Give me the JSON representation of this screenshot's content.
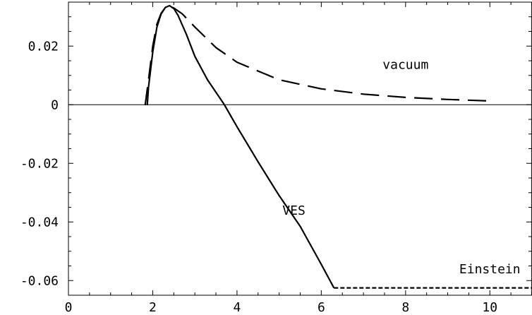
{
  "chart_data": {
    "type": "line",
    "title": "",
    "xlabel": "",
    "ylabel": "",
    "xlim": [
      0,
      11
    ],
    "ylim": [
      -0.065,
      0.035
    ],
    "grid": false,
    "legend": "none",
    "x_ticks": [
      {
        "value": 0,
        "label": "0"
      },
      {
        "value": 2,
        "label": "2"
      },
      {
        "value": 4,
        "label": "4"
      },
      {
        "value": 6,
        "label": "6"
      },
      {
        "value": 8,
        "label": "8"
      },
      {
        "value": 10,
        "label": "10"
      }
    ],
    "y_ticks": [
      {
        "value": 0.02,
        "label": "0.02"
      },
      {
        "value": 0,
        "label": "0"
      },
      {
        "value": -0.02,
        "label": "-0.02"
      },
      {
        "value": -0.04,
        "label": "-0.04"
      },
      {
        "value": -0.06,
        "label": "-0.06"
      }
    ],
    "series": [
      {
        "style": "dashed",
        "color": "#000000",
        "x": [
          1.82,
          1.9,
          2.0,
          2.1,
          2.2,
          2.3,
          2.4,
          2.5,
          2.7,
          3.0,
          3.5,
          4.0,
          5.0,
          6.0,
          7.0,
          8.0,
          9.0,
          10.0
        ],
        "y": [
          -0.0002,
          0.0085,
          0.02,
          0.0275,
          0.0312,
          0.0332,
          0.0335,
          0.033,
          0.031,
          0.0265,
          0.0195,
          0.0145,
          0.0085,
          0.0054,
          0.0036,
          0.0025,
          0.0018,
          0.0013
        ]
      },
      {
        "style": "solid",
        "color": "#000000",
        "x": [
          1.87,
          1.9,
          2.0,
          2.1,
          2.2,
          2.3,
          2.4,
          2.5,
          2.6,
          2.8,
          3.0,
          3.3,
          3.7,
          4.0,
          4.5,
          5.0,
          5.5,
          6.0,
          6.3
        ],
        "y": [
          -0.0002,
          0.006,
          0.018,
          0.0265,
          0.031,
          0.0332,
          0.0338,
          0.0328,
          0.0305,
          0.024,
          0.0165,
          0.0085,
          0.0,
          -0.0075,
          -0.0195,
          -0.031,
          -0.0415,
          -0.0545,
          -0.0625
        ]
      },
      {
        "style": "short-dashed",
        "color": "#000000",
        "x": [
          6.3,
          11.0
        ],
        "y": [
          -0.0625,
          -0.0625
        ]
      }
    ],
    "annotations": [
      {
        "text": "vacuum",
        "x": 8.0,
        "y": 0.0122
      },
      {
        "text": "VES",
        "x": 5.35,
        "y": -0.0375
      },
      {
        "text": "Einstein",
        "x": 10.0,
        "y": -0.0575
      }
    ]
  }
}
